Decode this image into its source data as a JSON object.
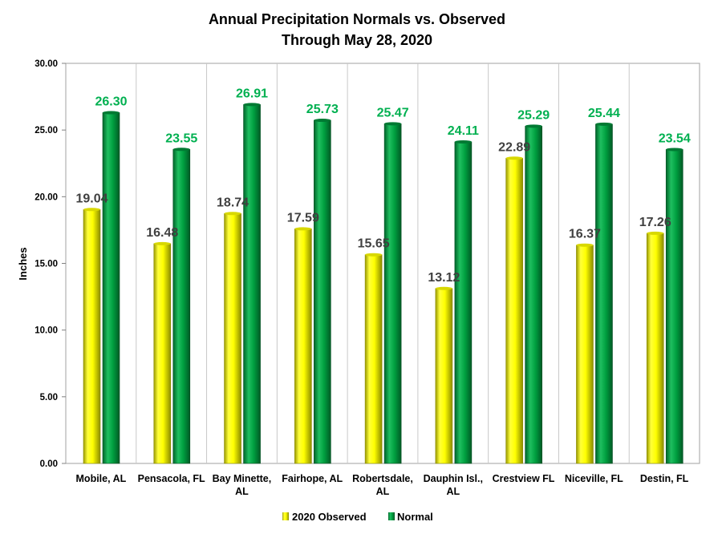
{
  "chart_data": {
    "type": "bar",
    "title": "Annual Precipitation Normals vs. Observed",
    "subtitle": "Through May 28, 2020",
    "xlabel": "",
    "ylabel": "Inches",
    "ylim": [
      0,
      30
    ],
    "yticks": [
      "0.00",
      "5.00",
      "10.00",
      "15.00",
      "20.00",
      "25.00",
      "30.00"
    ],
    "grid": "vertical-category-separators",
    "legend_position": "bottom",
    "categories": [
      [
        "Mobile, AL"
      ],
      [
        "Pensacola, FL"
      ],
      [
        "Bay Minette,",
        "AL"
      ],
      [
        "Fairhope, AL"
      ],
      [
        "Robertsdale,",
        "AL"
      ],
      [
        "Dauphin Isl.,",
        "AL"
      ],
      [
        "Crestview FL"
      ],
      [
        "Niceville, FL"
      ],
      [
        "Destin, FL"
      ]
    ],
    "series": [
      {
        "name": "2020 Observed",
        "color": "#FFFF00",
        "label_color": "#404040",
        "values": [
          19.04,
          16.48,
          18.74,
          17.59,
          15.65,
          13.12,
          22.89,
          16.37,
          17.26
        ],
        "labels": [
          "19.04",
          "16.48",
          "18.74",
          "17.59",
          "15.65",
          "13.12",
          "22.89",
          "16.37",
          "17.26"
        ]
      },
      {
        "name": "Normal",
        "color": "#00A040",
        "label_color": "#00B050",
        "values": [
          26.3,
          23.55,
          26.91,
          25.73,
          25.47,
          24.11,
          25.29,
          25.44,
          23.54
        ],
        "labels": [
          "26.30",
          "23.55",
          "26.91",
          "25.73",
          "25.47",
          "24.11",
          "25.29",
          "25.44",
          "23.54"
        ]
      }
    ]
  }
}
